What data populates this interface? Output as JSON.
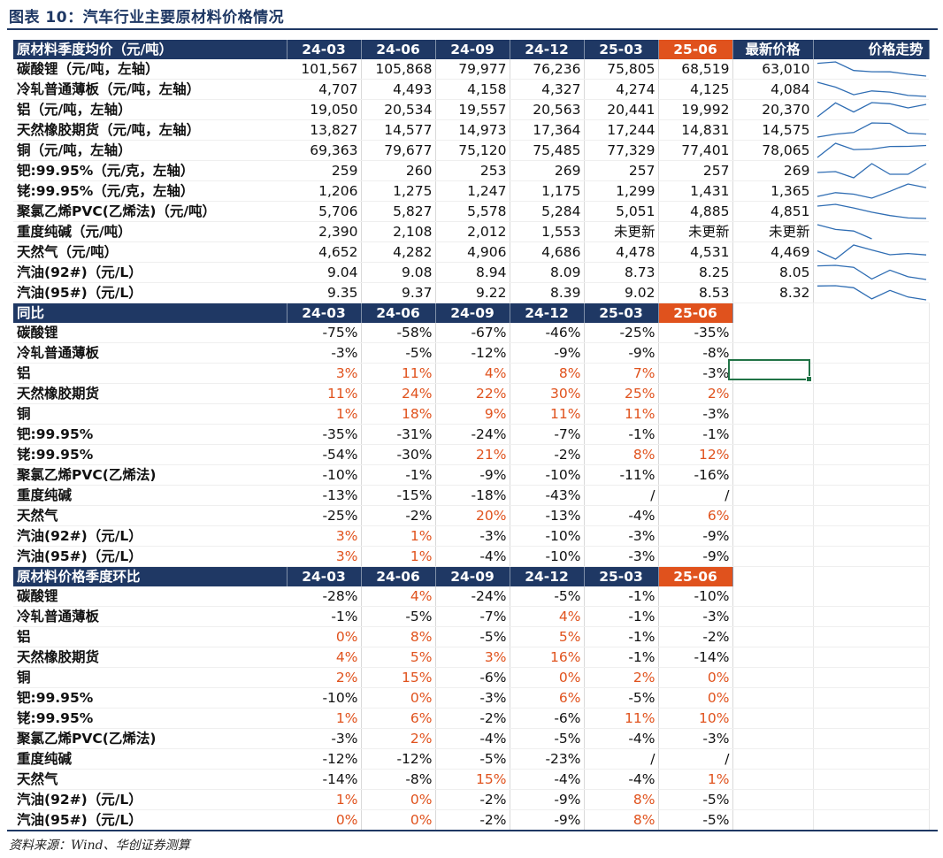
{
  "title": "图表 10：汽车行业主要原材料价格情况",
  "source": "资料来源：Wind、华创证券测算",
  "colors": {
    "header_bg": "#1f3864",
    "highlight": "#e0521d",
    "positive_text": "#e0521d",
    "selection": "#217346"
  },
  "section1": {
    "headers": [
      "原材料季度均价（元/吨）",
      "24-03",
      "24-06",
      "24-09",
      "24-12",
      "25-03",
      "25-06",
      "最新价格",
      "价格走势"
    ],
    "rows": [
      {
        "label": "碳酸锂（元/吨，左轴）",
        "values": [
          "101,567",
          "105,868",
          "79,977",
          "76,236",
          "75,805",
          "68,519",
          "63,010"
        ],
        "trend": [
          101567,
          105868,
          79977,
          76236,
          75805,
          68519,
          63010
        ]
      },
      {
        "label": "冷轧普通薄板（元/吨，左轴）",
        "values": [
          "4,707",
          "4,493",
          "4,158",
          "4,327",
          "4,274",
          "4,125",
          "4,084"
        ],
        "trend": [
          4707,
          4493,
          4158,
          4327,
          4274,
          4125,
          4084
        ]
      },
      {
        "label": "铝（元/吨，左轴）",
        "values": [
          "19,050",
          "20,534",
          "19,557",
          "20,563",
          "20,441",
          "19,992",
          "20,370"
        ],
        "trend": [
          19050,
          20534,
          19557,
          20563,
          20441,
          19992,
          20370
        ]
      },
      {
        "label": "天然橡胶期货（元/吨，左轴）",
        "values": [
          "13,827",
          "14,577",
          "14,973",
          "17,364",
          "17,244",
          "14,831",
          "14,575"
        ],
        "trend": [
          13827,
          14577,
          14973,
          17364,
          17244,
          14831,
          14575
        ]
      },
      {
        "label": "铜（元/吨，左轴）",
        "values": [
          "69,363",
          "79,677",
          "75,120",
          "75,485",
          "77,329",
          "77,401",
          "78,065"
        ],
        "trend": [
          69363,
          79677,
          75120,
          75485,
          77329,
          77401,
          78065
        ]
      },
      {
        "label": "钯:99.95%（元/克，左轴）",
        "values": [
          "259",
          "260",
          "253",
          "269",
          "257",
          "257",
          "269"
        ],
        "trend": [
          259,
          260,
          253,
          269,
          257,
          257,
          269
        ]
      },
      {
        "label": "铑:99.95%（元/克，左轴）",
        "values": [
          "1,206",
          "1,275",
          "1,247",
          "1,175",
          "1,299",
          "1,431",
          "1,365"
        ],
        "trend": [
          1206,
          1275,
          1247,
          1175,
          1299,
          1431,
          1365
        ]
      },
      {
        "label": "聚氯乙烯PVC(乙烯法)（元/吨）",
        "values": [
          "5,706",
          "5,827",
          "5,578",
          "5,284",
          "5,051",
          "4,885",
          "4,851"
        ],
        "trend": [
          5706,
          5827,
          5578,
          5284,
          5051,
          4885,
          4851
        ]
      },
      {
        "label": "重度纯碱（元/吨）",
        "values": [
          "2,390",
          "2,108",
          "2,012",
          "1,553",
          "未更新",
          "未更新",
          "未更新"
        ],
        "trend": [
          2390,
          2108,
          2012,
          1553
        ]
      },
      {
        "label": "天然气（元/吨）",
        "values": [
          "4,652",
          "4,282",
          "4,906",
          "4,686",
          "4,478",
          "4,531",
          "4,469"
        ],
        "trend": [
          4652,
          4282,
          4906,
          4686,
          4478,
          4531,
          4469
        ]
      },
      {
        "label": "汽油(92#)（元/L）",
        "values": [
          "9.04",
          "9.08",
          "8.94",
          "8.09",
          "8.73",
          "8.25",
          "8.05"
        ],
        "trend": [
          9.04,
          9.08,
          8.94,
          8.09,
          8.73,
          8.25,
          8.05
        ],
        "sep": true
      },
      {
        "label": "汽油(95#)（元/L）",
        "values": [
          "9.35",
          "9.37",
          "9.22",
          "8.39",
          "9.02",
          "8.53",
          "8.32"
        ],
        "trend": [
          9.35,
          9.37,
          9.22,
          8.39,
          9.02,
          8.53,
          8.32
        ]
      }
    ]
  },
  "section2": {
    "headers": [
      "同比",
      "24-03",
      "24-06",
      "24-09",
      "24-12",
      "25-03",
      "25-06"
    ],
    "rows": [
      {
        "label": "碳酸锂",
        "values": [
          "-75%",
          "-58%",
          "-67%",
          "-46%",
          "-25%",
          "-35%"
        ]
      },
      {
        "label": "冷轧普通薄板",
        "values": [
          "-3%",
          "-5%",
          "-12%",
          "-9%",
          "-9%",
          "-8%"
        ]
      },
      {
        "label": "铝",
        "values": [
          "3%",
          "11%",
          "4%",
          "8%",
          "7%",
          "-3%"
        ]
      },
      {
        "label": "天然橡胶期货",
        "values": [
          "11%",
          "24%",
          "22%",
          "30%",
          "25%",
          "2%"
        ]
      },
      {
        "label": "铜",
        "values": [
          "1%",
          "18%",
          "9%",
          "11%",
          "11%",
          "-3%"
        ]
      },
      {
        "label": "钯:99.95%",
        "values": [
          "-35%",
          "-31%",
          "-24%",
          "-7%",
          "-1%",
          "-1%"
        ]
      },
      {
        "label": "铑:99.95%",
        "values": [
          "-54%",
          "-30%",
          "21%",
          "-2%",
          "8%",
          "12%"
        ]
      },
      {
        "label": "聚氯乙烯PVC(乙烯法)",
        "values": [
          "-10%",
          "-1%",
          "-9%",
          "-10%",
          "-11%",
          "-16%"
        ]
      },
      {
        "label": "重度纯碱",
        "values": [
          "-13%",
          "-15%",
          "-18%",
          "-43%",
          "/",
          "/"
        ]
      },
      {
        "label": "天然气",
        "values": [
          "-25%",
          "-2%",
          "20%",
          "-13%",
          "-4%",
          "6%"
        ]
      },
      {
        "label": "汽油(92#)（元/L）",
        "values": [
          "3%",
          "1%",
          "-3%",
          "-10%",
          "-3%",
          "-9%"
        ],
        "sep": true
      },
      {
        "label": "汽油(95#)（元/L）",
        "values": [
          "3%",
          "1%",
          "-4%",
          "-10%",
          "-3%",
          "-9%"
        ]
      }
    ]
  },
  "section3": {
    "headers": [
      "原材料价格季度环比",
      "24-03",
      "24-06",
      "24-09",
      "24-12",
      "25-03",
      "25-06"
    ],
    "rows": [
      {
        "label": "碳酸锂",
        "values": [
          "-28%",
          "4%",
          "-24%",
          "-5%",
          "-1%",
          "-10%"
        ]
      },
      {
        "label": "冷轧普通薄板",
        "values": [
          "-1%",
          "-5%",
          "-7%",
          "4%",
          "-1%",
          "-3%"
        ]
      },
      {
        "label": "铝",
        "values": [
          "0%",
          "8%",
          "-5%",
          "5%",
          "-1%",
          "-2%"
        ]
      },
      {
        "label": "天然橡胶期货",
        "values": [
          "4%",
          "5%",
          "3%",
          "16%",
          "-1%",
          "-14%"
        ]
      },
      {
        "label": "铜",
        "values": [
          "2%",
          "15%",
          "-6%",
          "0%",
          "2%",
          "0%"
        ]
      },
      {
        "label": "钯:99.95%",
        "values": [
          "-10%",
          "0%",
          "-3%",
          "6%",
          "-5%",
          "0%"
        ]
      },
      {
        "label": "铑:99.95%",
        "values": [
          "1%",
          "6%",
          "-2%",
          "-6%",
          "11%",
          "10%"
        ]
      },
      {
        "label": "聚氯乙烯PVC(乙烯法)",
        "values": [
          "-3%",
          "2%",
          "-4%",
          "-5%",
          "-4%",
          "-3%"
        ]
      },
      {
        "label": "重度纯碱",
        "values": [
          "-12%",
          "-12%",
          "-5%",
          "-23%",
          "/",
          "/"
        ]
      },
      {
        "label": "天然气",
        "values": [
          "-14%",
          "-8%",
          "15%",
          "-4%",
          "-4%",
          "1%"
        ]
      },
      {
        "label": "汽油(92#)（元/L）",
        "values": [
          "1%",
          "0%",
          "-2%",
          "-9%",
          "8%",
          "-5%"
        ],
        "sep": true
      },
      {
        "label": "汽油(95#)（元/L）",
        "values": [
          "0%",
          "0%",
          "-2%",
          "-9%",
          "8%",
          "-5%"
        ]
      }
    ]
  }
}
